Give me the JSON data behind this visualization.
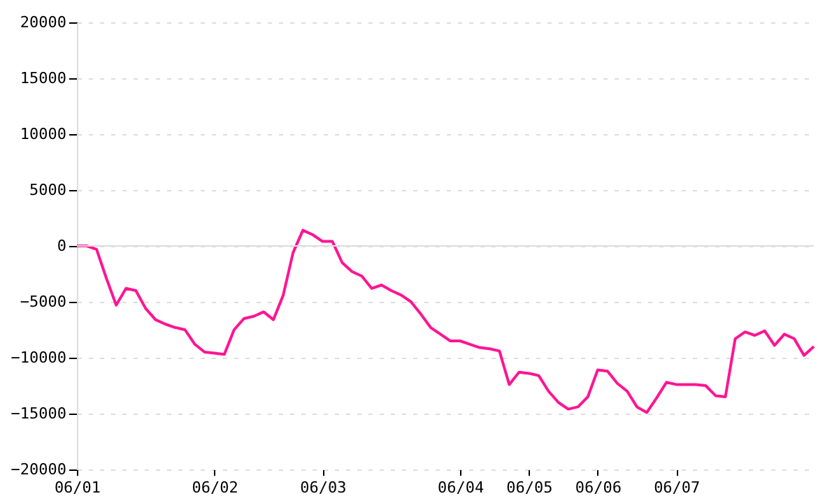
{
  "chart_data": {
    "type": "line",
    "categories": [
      "06/01",
      null,
      null,
      null,
      null,
      null,
      null,
      null,
      null,
      null,
      null,
      null,
      null,
      null,
      "06/02",
      null,
      null,
      null,
      null,
      null,
      null,
      null,
      null,
      null,
      null,
      "06/03",
      null,
      null,
      null,
      null,
      null,
      null,
      null,
      null,
      null,
      null,
      null,
      null,
      null,
      "06/04",
      null,
      null,
      null,
      null,
      null,
      null,
      "06/05",
      null,
      null,
      null,
      null,
      null,
      null,
      "06/06",
      null,
      null,
      null,
      null,
      null,
      null,
      null,
      "06/07",
      null,
      null,
      null,
      null,
      null,
      null,
      null,
      null,
      null,
      null,
      null,
      null,
      null,
      null
    ],
    "series": [
      {
        "color": "#ff1493",
        "values": [
          0,
          0,
          -300,
          -2900,
          -5300,
          -3800,
          -4000,
          -5600,
          -6600,
          -7000,
          -7300,
          -7500,
          -8800,
          -9500,
          -9600,
          -9700,
          -7500,
          -6500,
          -6300,
          -5900,
          -6600,
          -4400,
          -600,
          1400,
          1000,
          400,
          400,
          -1500,
          -2300,
          -2700,
          -3800,
          -3500,
          -4000,
          -4400,
          -5000,
          -6100,
          -7300,
          -7900,
          -8500,
          -8500,
          -8800,
          -9100,
          -9200,
          -9400,
          -12400,
          -11300,
          -11400,
          -11600,
          -13000,
          -14000,
          -14600,
          -14400,
          -13500,
          -11100,
          -11200,
          -12300,
          -13000,
          -14400,
          -14900,
          -13600,
          -12200,
          -12400,
          -12400,
          -12400,
          -12500,
          -13400,
          -13500,
          -8300,
          -7700,
          -8000,
          -7600,
          -8900,
          -7900,
          -8300,
          -9800,
          -9000
        ]
      }
    ],
    "ylim": [
      -20000,
      20000
    ],
    "yticks": [
      -20000,
      -15000,
      -10000,
      -5000,
      0,
      5000,
      10000,
      15000,
      20000
    ],
    "grid": "y",
    "marker": "none",
    "line_style": "solid",
    "ref_lines": [
      {
        "axis": "y",
        "value": 0,
        "color": "#dddddd"
      }
    ]
  }
}
